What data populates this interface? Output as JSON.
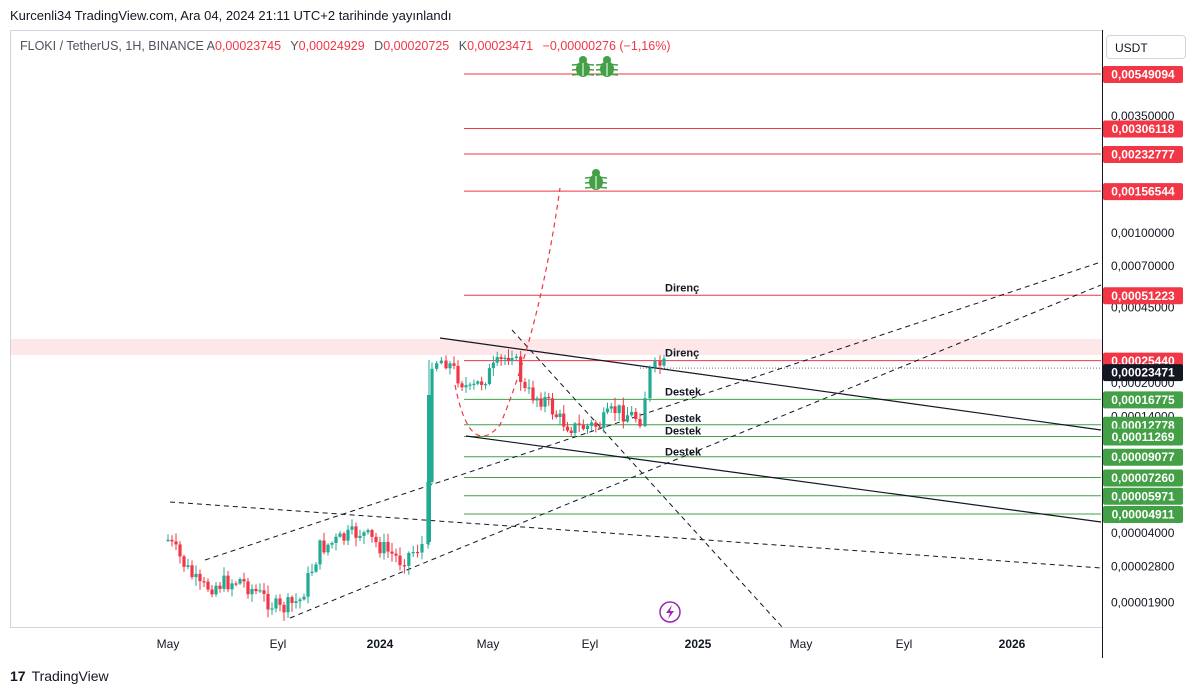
{
  "header": {
    "published": "Kurcenli34 TradingView.com, Ara 04, 2024 21:11 UTC+2 tarihinde yayınlandı"
  },
  "legend": {
    "symbol": "FLOKI / TetherUS, 1H, BINANCE",
    "open_label": "A",
    "open": "0,00023745",
    "high_label": "Y",
    "high": "0,00024929",
    "low_label": "D",
    "low": "0,00020725",
    "close_label": "K",
    "close": "0,00023471",
    "change": "−0,00000276 (−1,16%)"
  },
  "currency_button": "USDT",
  "footer": {
    "brand": "TradingView"
  },
  "colors": {
    "up": "#22ab94",
    "down": "#f23645",
    "resistance": "#f23645",
    "support": "#43a047",
    "last": "#131722"
  },
  "chart_data": {
    "type": "candlestick",
    "symbol": "FLOKI/USDT",
    "y_scale": "log",
    "ylim": [
      1.4e-05,
      0.0065
    ],
    "x_ticks": [
      "May",
      "Eyl",
      "2024",
      "May",
      "Eyl",
      "2025",
      "May",
      "Eyl",
      "2026"
    ],
    "y_ticks": [
      "0,00350000",
      "0,00100000",
      "0,00070000",
      "0,00045000",
      "0,00020000",
      "0,00014000",
      "0,00004000",
      "0,00002800",
      "0,00001900"
    ],
    "resistance_levels": [
      {
        "value": 0.00549094,
        "label": "0,00549094"
      },
      {
        "value": 0.00306118,
        "label": "0,00306118"
      },
      {
        "value": 0.00232777,
        "label": "0,00232777"
      },
      {
        "value": 0.00156544,
        "label": "0,00156544"
      },
      {
        "value": 0.00051223,
        "label": "0,00051223"
      },
      {
        "value": 0.0002544,
        "label": "0,00025440"
      }
    ],
    "support_levels": [
      {
        "value": 0.00016775,
        "label": "0,00016775"
      },
      {
        "value": 0.00012778,
        "label": "0,00012778"
      },
      {
        "value": 0.00011269,
        "label": "0,00011269"
      },
      {
        "value": 9.077e-05,
        "label": "0,00009077"
      },
      {
        "value": 7.26e-05,
        "label": "0,00007260"
      },
      {
        "value": 5.971e-05,
        "label": "0,00005971"
      },
      {
        "value": 4.911e-05,
        "label": "0,00004911"
      }
    ],
    "last_price": {
      "value": 0.00023471,
      "label": "0,00023471"
    },
    "annotations": [
      {
        "text": "Direnç",
        "value": 0.00051223
      },
      {
        "text": "Direnç",
        "value": 0.0002544
      },
      {
        "text": "Destek",
        "value": 0.00016775
      },
      {
        "text": "Destek",
        "value": 0.00012778
      },
      {
        "text": "Destek",
        "value": 0.00011269
      },
      {
        "text": "Destek",
        "value": 9.077e-05
      }
    ]
  }
}
